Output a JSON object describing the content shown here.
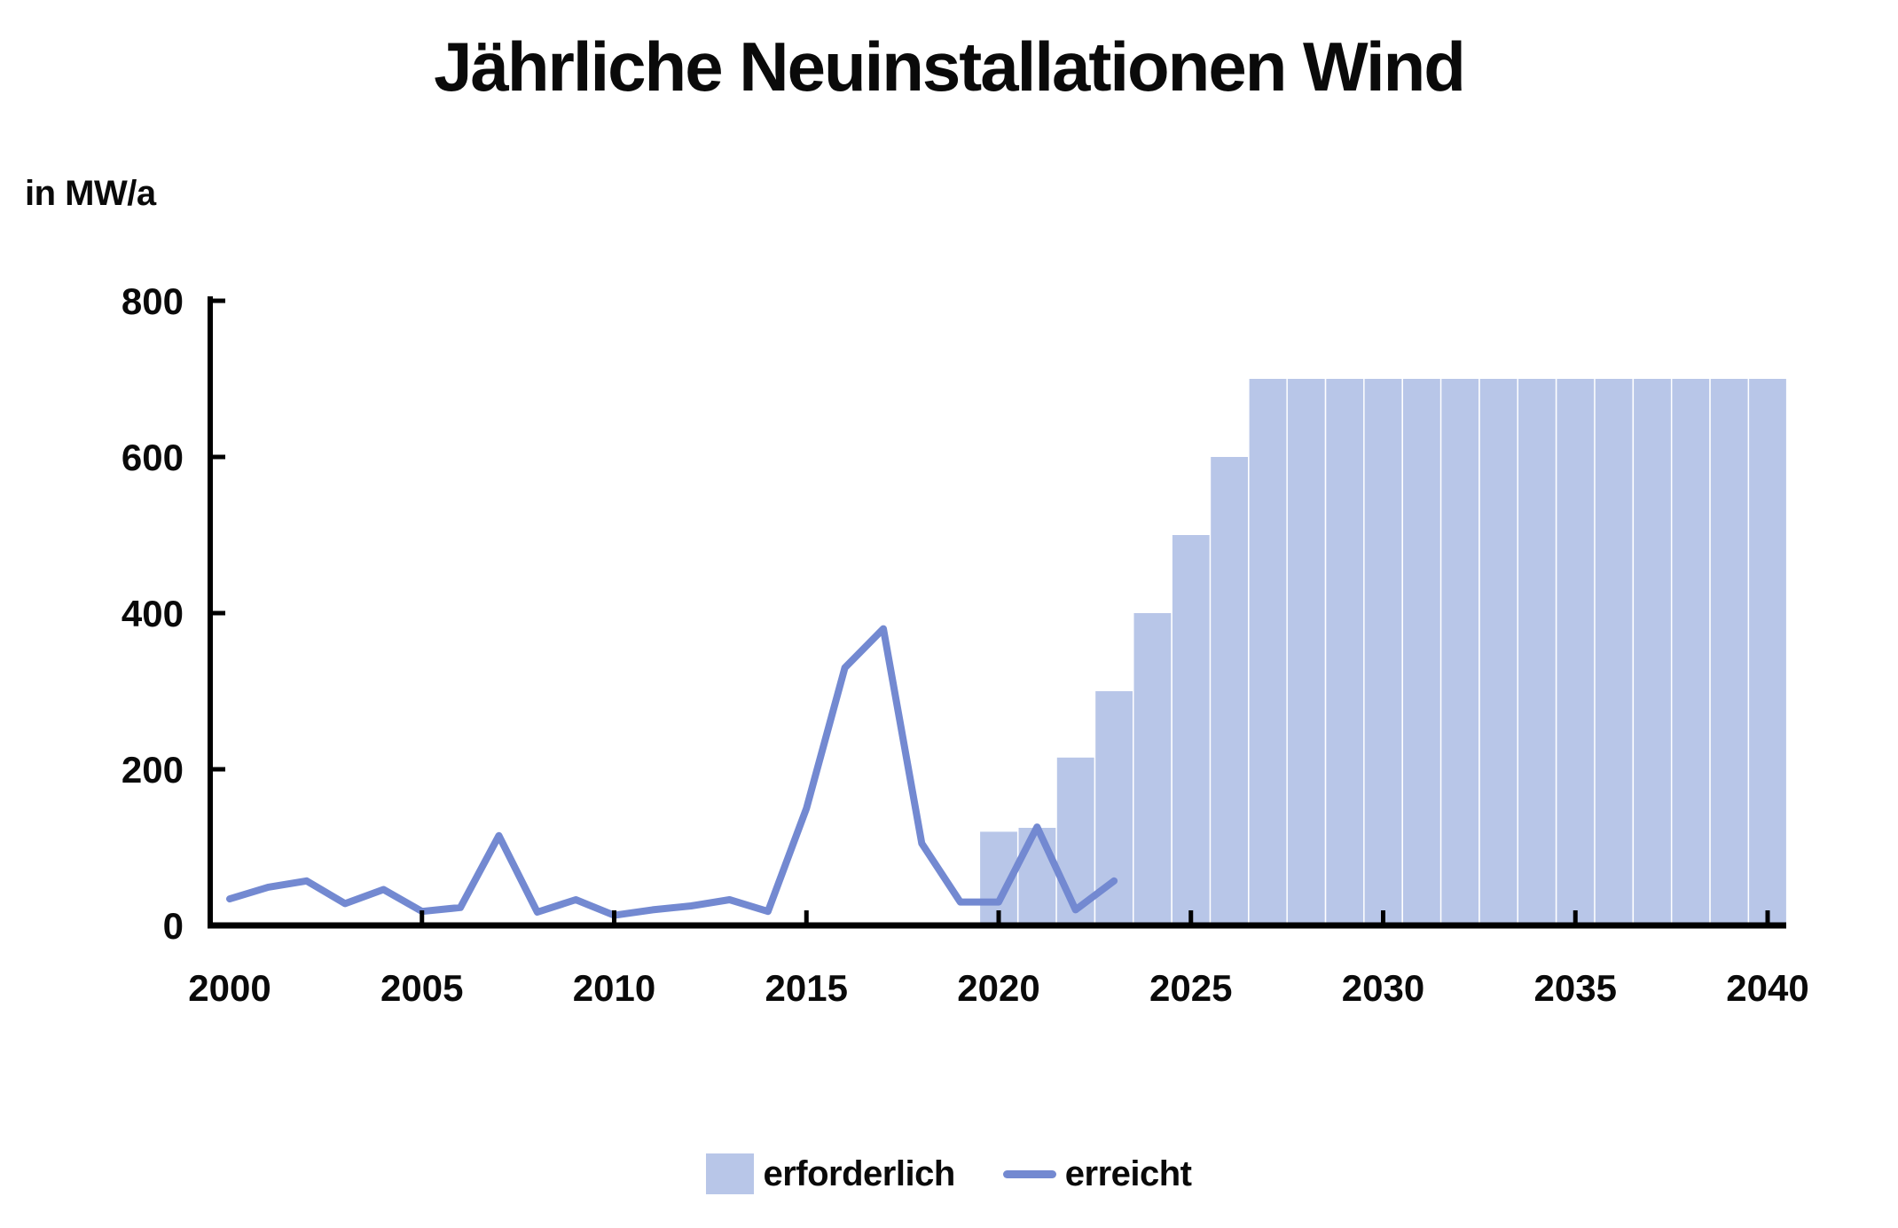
{
  "title": "Jährliche Neuinstallationen Wind",
  "unit_label": "in MW/a",
  "legend": {
    "required_label": "erforderlich",
    "achieved_label": "erreicht"
  },
  "colors": {
    "background": "#ffffff",
    "area": "#b8c6e8",
    "line": "#7389d1",
    "axis": "#000000",
    "text": "#0a0a0a"
  },
  "chart_data": {
    "type": "area",
    "title": "Jährliche Neuinstallationen Wind",
    "ylabel": "in MW/a",
    "xlabel": "",
    "grid": false,
    "legend_position": "bottom-center",
    "xlim": [
      1999.5,
      2041.2
    ],
    "ylim": [
      0,
      800
    ],
    "y_ticks": [
      0,
      200,
      400,
      600,
      800
    ],
    "x_ticks": [
      2000,
      2005,
      2010,
      2015,
      2020,
      2025,
      2030,
      2035,
      2040
    ],
    "series": [
      {
        "name": "erforderlich",
        "type": "step-area-bars",
        "color": "#b8c6e8",
        "years": [
          2020,
          2021,
          2022,
          2023,
          2024,
          2025,
          2026,
          2027,
          2028,
          2029,
          2030,
          2031,
          2032,
          2033,
          2034,
          2035,
          2036,
          2037,
          2038,
          2039,
          2040
        ],
        "values": [
          120,
          125,
          215,
          300,
          400,
          500,
          600,
          700,
          700,
          700,
          700,
          700,
          700,
          700,
          700,
          700,
          700,
          700,
          700,
          700,
          700
        ]
      },
      {
        "name": "erreicht",
        "type": "line",
        "color": "#7389d1",
        "years": [
          2000,
          2001,
          2002,
          2003,
          2004,
          2005,
          2006,
          2007,
          2008,
          2009,
          2010,
          2011,
          2012,
          2013,
          2014,
          2015,
          2016,
          2017,
          2018,
          2019,
          2020,
          2021,
          2022,
          2023
        ],
        "values": [
          34,
          49,
          57,
          28,
          46,
          18,
          23,
          115,
          17,
          33,
          13,
          20,
          25,
          33,
          18,
          150,
          330,
          380,
          105,
          30,
          30,
          126,
          20,
          57
        ]
      }
    ]
  }
}
